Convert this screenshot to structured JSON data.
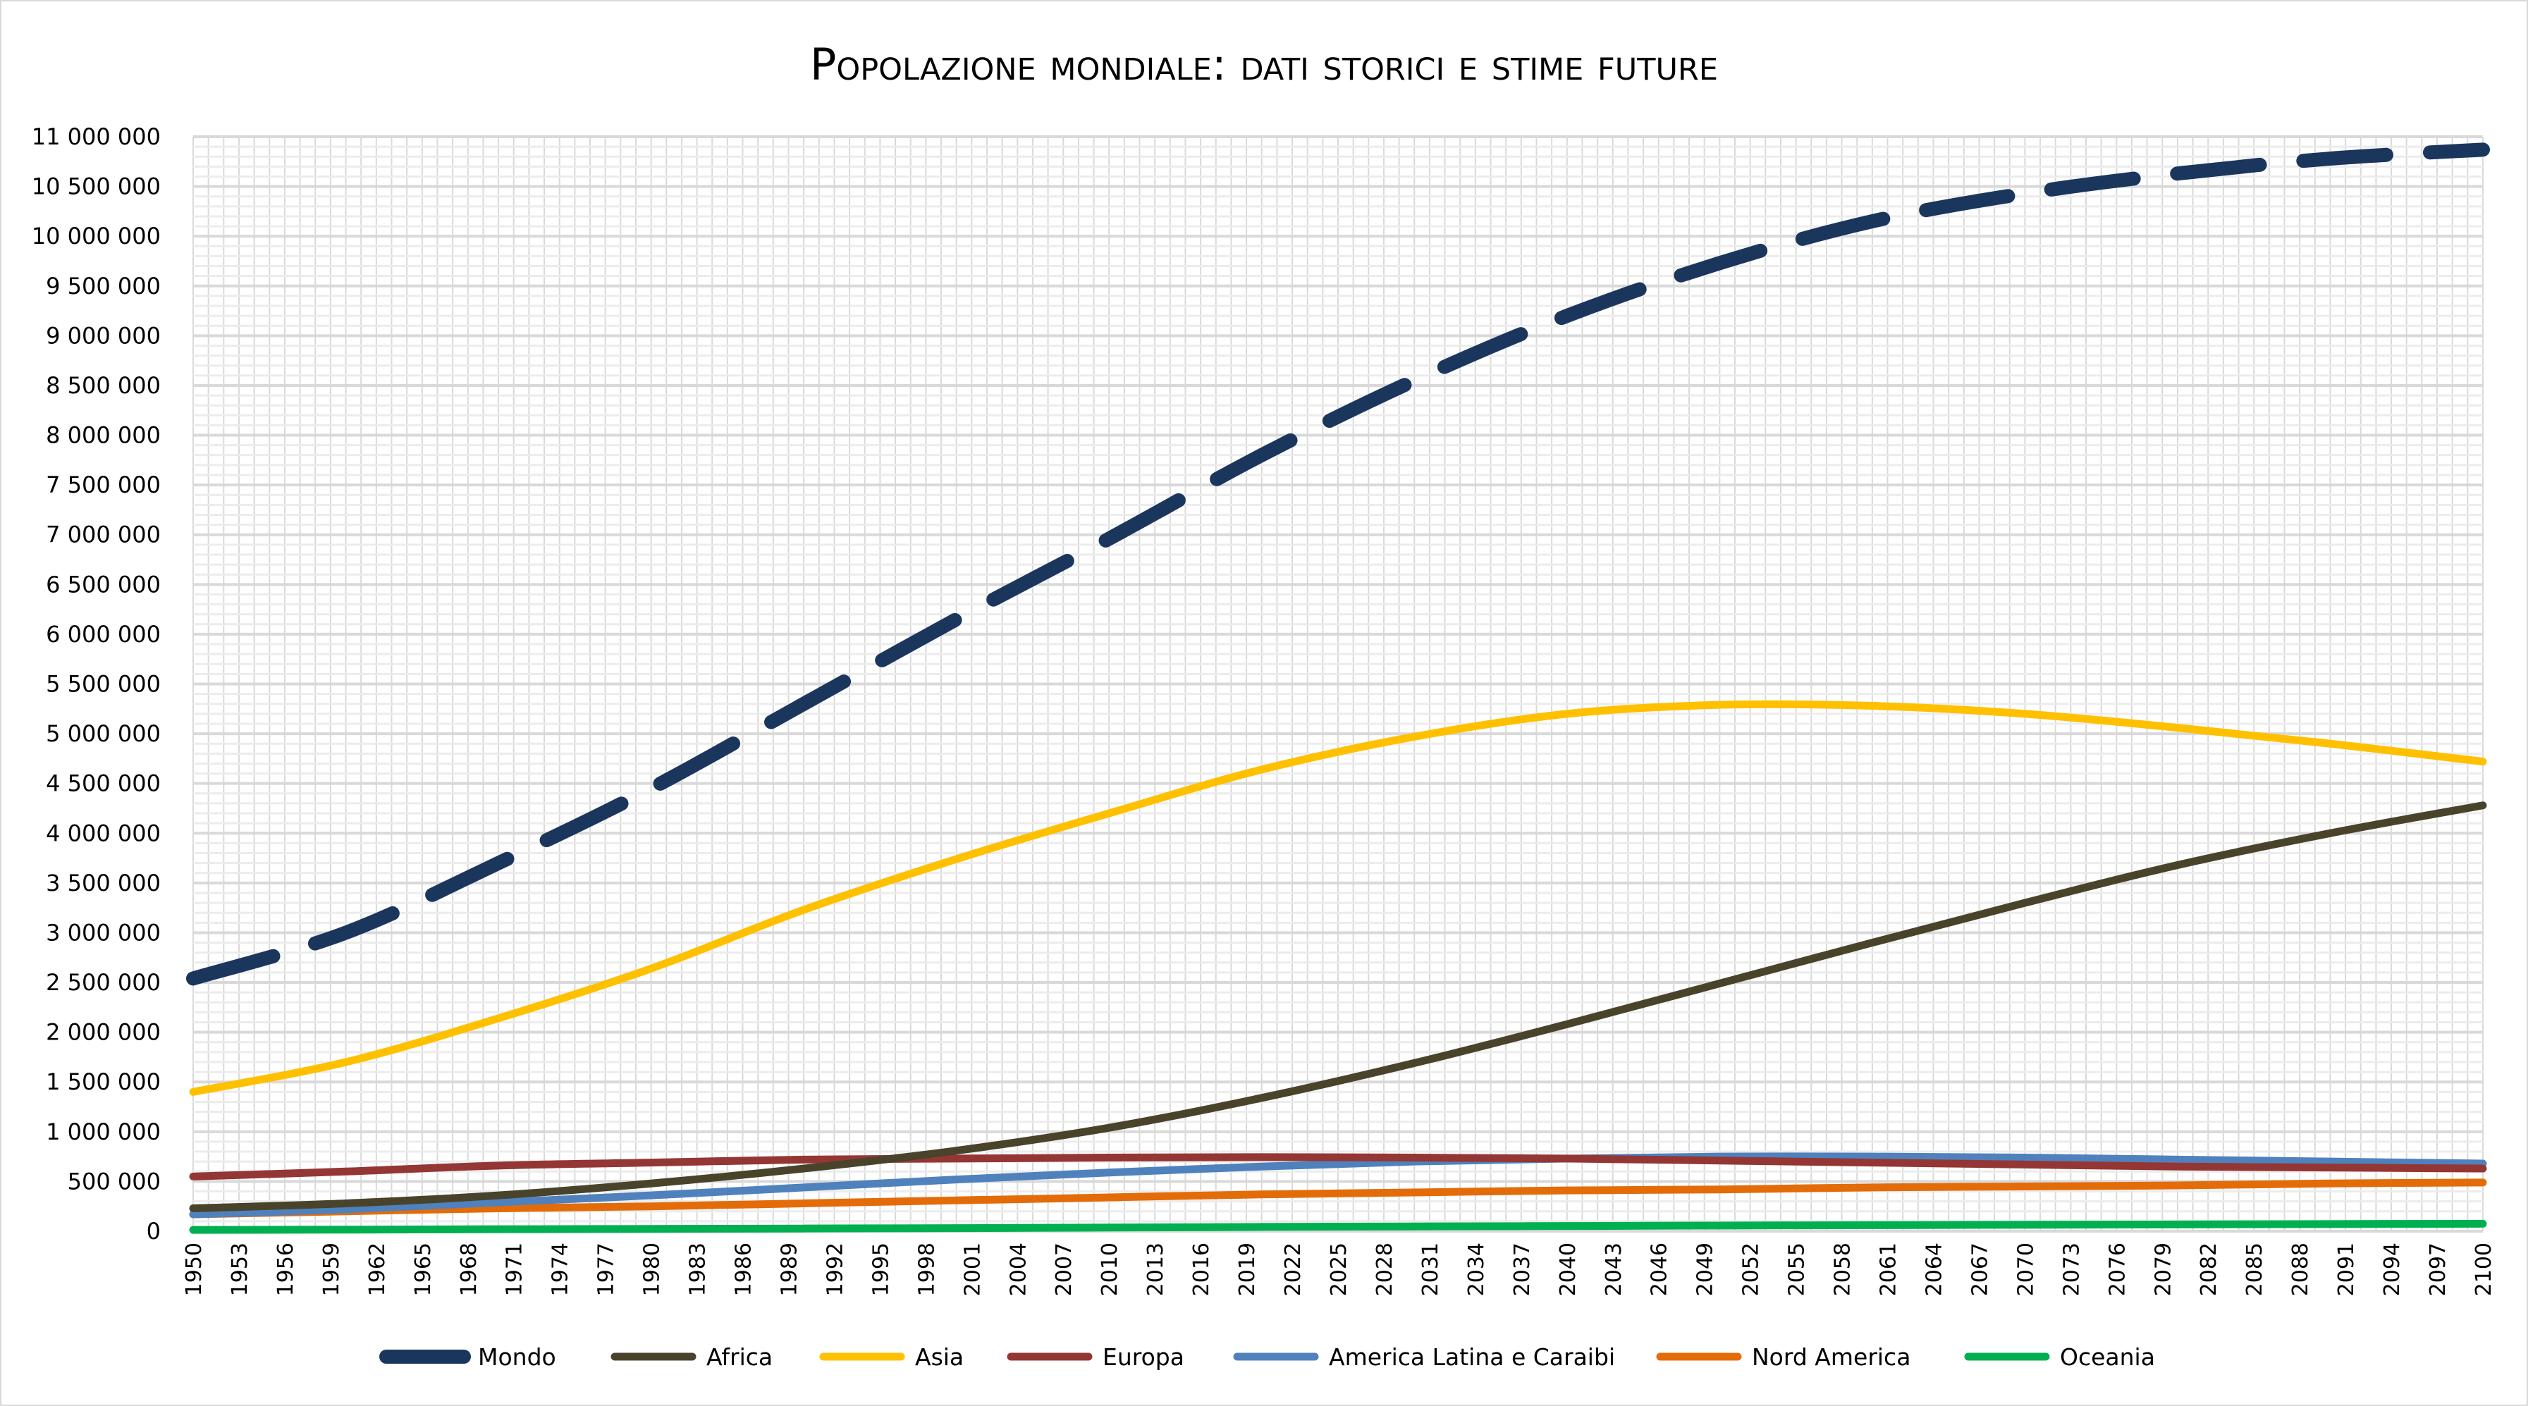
{
  "chart_data": {
    "type": "line",
    "title": "Popolazione mondiale: dati storici e stime future",
    "xlabel": "",
    "ylabel": "",
    "xlim": [
      1950,
      2100
    ],
    "ylim": [
      0,
      11000000
    ],
    "grid": true,
    "legend_position": "bottom",
    "y_ticks": [
      "0",
      "500 000",
      "1 000 000",
      "1 500 000",
      "2 000 000",
      "2 500 000",
      "3 000 000",
      "3 500 000",
      "4 000 000",
      "4 500 000",
      "5 000 000",
      "5 500 000",
      "6 000 000",
      "6 500 000",
      "7 000 000",
      "7 500 000",
      "8 000 000",
      "8 500 000",
      "9 000 000",
      "9 500 000",
      "10 000 000",
      "10 500 000",
      "11 000 000"
    ],
    "x_tick_step": 3,
    "x": [
      1950,
      1960,
      1970,
      1980,
      1990,
      2000,
      2010,
      2020,
      2030,
      2040,
      2050,
      2060,
      2070,
      2080,
      2090,
      2100
    ],
    "series": [
      {
        "name": "Mondo",
        "color": "#1b365d",
        "dashed": true,
        "values": [
          2540000,
          3000000,
          3700000,
          4450000,
          5300000,
          6150000,
          6960000,
          7800000,
          8550000,
          9200000,
          9730000,
          10150000,
          10430000,
          10630000,
          10780000,
          10870000
        ]
      },
      {
        "name": "Africa",
        "color": "#49432b",
        "values": [
          230000,
          280000,
          360000,
          480000,
          630000,
          810000,
          1040000,
          1340000,
          1690000,
          2080000,
          2490000,
          2900000,
          3300000,
          3680000,
          4000000,
          4280000
        ]
      },
      {
        "name": "Asia",
        "color": "#ffc000",
        "values": [
          1400000,
          1700000,
          2140000,
          2640000,
          3230000,
          3740000,
          4200000,
          4640000,
          4970000,
          5200000,
          5290000,
          5280000,
          5200000,
          5060000,
          4900000,
          4720000
        ]
      },
      {
        "name": "Europa",
        "color": "#943634",
        "values": [
          550000,
          600000,
          660000,
          690000,
          720000,
          730000,
          740000,
          745000,
          740000,
          730000,
          710000,
          690000,
          670000,
          650000,
          640000,
          630000
        ]
      },
      {
        "name": "America Latina e Caraibi",
        "color": "#4f81bd",
        "values": [
          170000,
          220000,
          290000,
          360000,
          440000,
          520000,
          590000,
          650000,
          700000,
          730000,
          750000,
          750000,
          740000,
          720000,
          700000,
          680000
        ]
      },
      {
        "name": "Nord America",
        "color": "#e36c09",
        "values": [
          170000,
          200000,
          230000,
          250000,
          280000,
          310000,
          340000,
          370000,
          390000,
          410000,
          420000,
          440000,
          450000,
          460000,
          480000,
          490000
        ]
      },
      {
        "name": "Oceania",
        "color": "#00b050",
        "values": [
          13000,
          16000,
          20000,
          23000,
          27000,
          31000,
          37000,
          43000,
          48000,
          52000,
          57000,
          61000,
          65000,
          68000,
          72000,
          75000
        ]
      }
    ]
  }
}
